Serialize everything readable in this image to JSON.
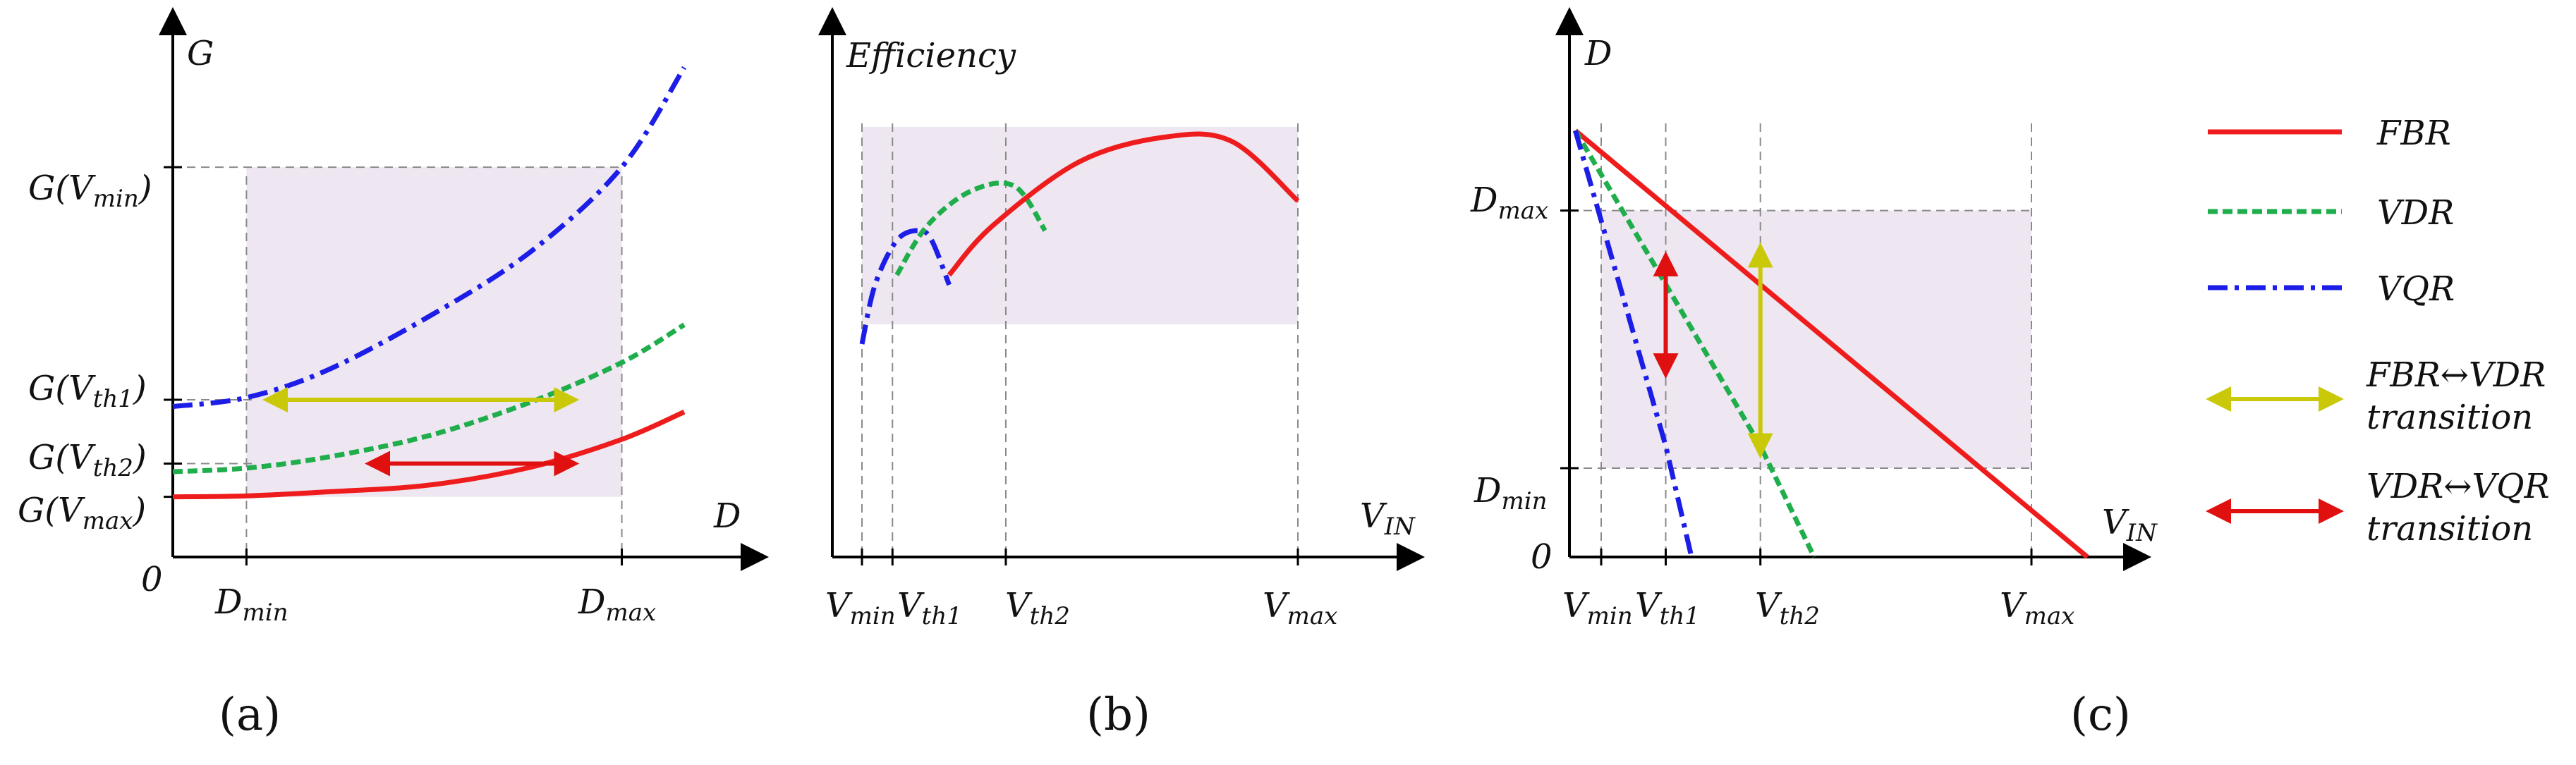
{
  "colors": {
    "fbr": "#ee1c1c",
    "vdr": "#1fae4b",
    "vqr": "#1d1de8",
    "fbr_vdr_arrow": "#c9c90a",
    "vdr_vqr_arrow": "#e01010",
    "region": "#eee7f1"
  },
  "chart_data": [
    {
      "panel": "(a)",
      "type": "line",
      "xlabel": "D",
      "ylabel": "G",
      "origin_label": "0",
      "x_ticks": [
        "D_min",
        "D_max"
      ],
      "y_ticks": [
        "G(V_max)",
        "G(V_th2)",
        "G(V_th1)",
        "G(V_min)"
      ],
      "xlim": [
        0,
        1
      ],
      "ylim": [
        0,
        1
      ],
      "region": {
        "x": [
          0.144,
          0.878
        ],
        "y": [
          0.134,
          0.868
        ]
      },
      "series": [
        {
          "name": "VQR",
          "x": [
            0,
            0.144,
            0.3,
            0.5,
            0.7,
            0.878,
            1
          ],
          "y": [
            0.335,
            0.355,
            0.415,
            0.535,
            0.68,
            0.868,
            1.09
          ]
        },
        {
          "name": "VDR",
          "x": [
            0,
            0.144,
            0.3,
            0.5,
            0.7,
            0.878,
            1
          ],
          "y": [
            0.19,
            0.198,
            0.222,
            0.27,
            0.345,
            0.433,
            0.517
          ]
        },
        {
          "name": "FBR",
          "x": [
            0,
            0.144,
            0.3,
            0.5,
            0.7,
            0.878,
            1
          ],
          "y": [
            0.134,
            0.136,
            0.145,
            0.16,
            0.2,
            0.262,
            0.323
          ]
        }
      ],
      "transitions": [
        {
          "type": "FBR-VDR",
          "y": 0.35,
          "x": [
            0.2,
            0.77
          ]
        },
        {
          "type": "VDR-VQR",
          "y": 0.208,
          "x": [
            0.4,
            0.77
          ]
        }
      ]
    },
    {
      "panel": "(b)",
      "type": "line",
      "xlabel": "V_IN",
      "ylabel": "Efficiency",
      "x_ticks": [
        "V_min",
        "V_th1",
        "V_th2",
        "V_max"
      ],
      "xlim": [
        0,
        1
      ],
      "ylim": [
        0,
        1
      ],
      "region": {
        "x": [
          0,
          1
        ],
        "y": [
          0.6,
          1.0
        ]
      },
      "series": [
        {
          "name": "VQR",
          "x": [
            0,
            0.03,
            0.08,
            0.13,
            0.16,
            0.2
          ],
          "y": [
            0.56,
            0.68,
            0.77,
            0.79,
            0.77,
            0.68
          ]
        },
        {
          "name": "VDR",
          "x": [
            0.08,
            0.15,
            0.25,
            0.35,
            0.42
          ],
          "y": [
            0.7,
            0.8,
            0.87,
            0.88,
            0.79
          ]
        },
        {
          "name": "FBR",
          "x": [
            0.2,
            0.3,
            0.5,
            0.7,
            0.85,
            1.0
          ],
          "y": [
            0.7,
            0.8,
            0.93,
            0.98,
            0.97,
            0.85
          ]
        }
      ]
    },
    {
      "panel": "(c)",
      "type": "line",
      "xlabel": "V_IN",
      "ylabel": "D",
      "origin_label": "0",
      "x_ticks": [
        "V_min",
        "V_th1",
        "V_th2",
        "V_max"
      ],
      "y_ticks": [
        "D_min",
        "D_max"
      ],
      "xlim": [
        0,
        1
      ],
      "ylim": [
        0,
        1
      ],
      "region": {
        "x": [
          0,
          1
        ],
        "y": [
          0.2,
          0.78
        ]
      },
      "series": [
        {
          "name": "FBR",
          "x": [
            -0.06,
            1.13
          ],
          "y": [
            0.96,
            0
          ]
        },
        {
          "name": "VDR",
          "x": [
            -0.06,
            0.11,
            0.37,
            0.495
          ],
          "y": [
            0.96,
            0.68,
            0.25,
            0
          ]
        },
        {
          "name": "VQR",
          "x": [
            -0.06,
            0.15,
            0.21
          ],
          "y": [
            0.96,
            0.25,
            0
          ]
        }
      ],
      "transitions": [
        {
          "type": "VDR-VQR",
          "x": 0.15,
          "y": [
            0.43,
            0.66
          ]
        },
        {
          "type": "FBR-VDR",
          "x": 0.37,
          "y": [
            0.25,
            0.68
          ]
        }
      ]
    }
  ],
  "legend": {
    "entries": [
      {
        "label": "FBR",
        "style": "solid",
        "color": "#ee1c1c"
      },
      {
        "label": "VDR",
        "style": "dashed",
        "color": "#1fae4b"
      },
      {
        "label": "VQR",
        "style": "dashdot",
        "color": "#1d1de8"
      }
    ],
    "arrows": [
      {
        "line1": "FBR↔VDR",
        "line2": "transition",
        "color": "#c9c90a"
      },
      {
        "line1": "VDR↔VQR",
        "line2": "transition",
        "color": "#e01010"
      }
    ]
  },
  "panel_labels": [
    "(a)",
    "(b)",
    "(c)"
  ]
}
